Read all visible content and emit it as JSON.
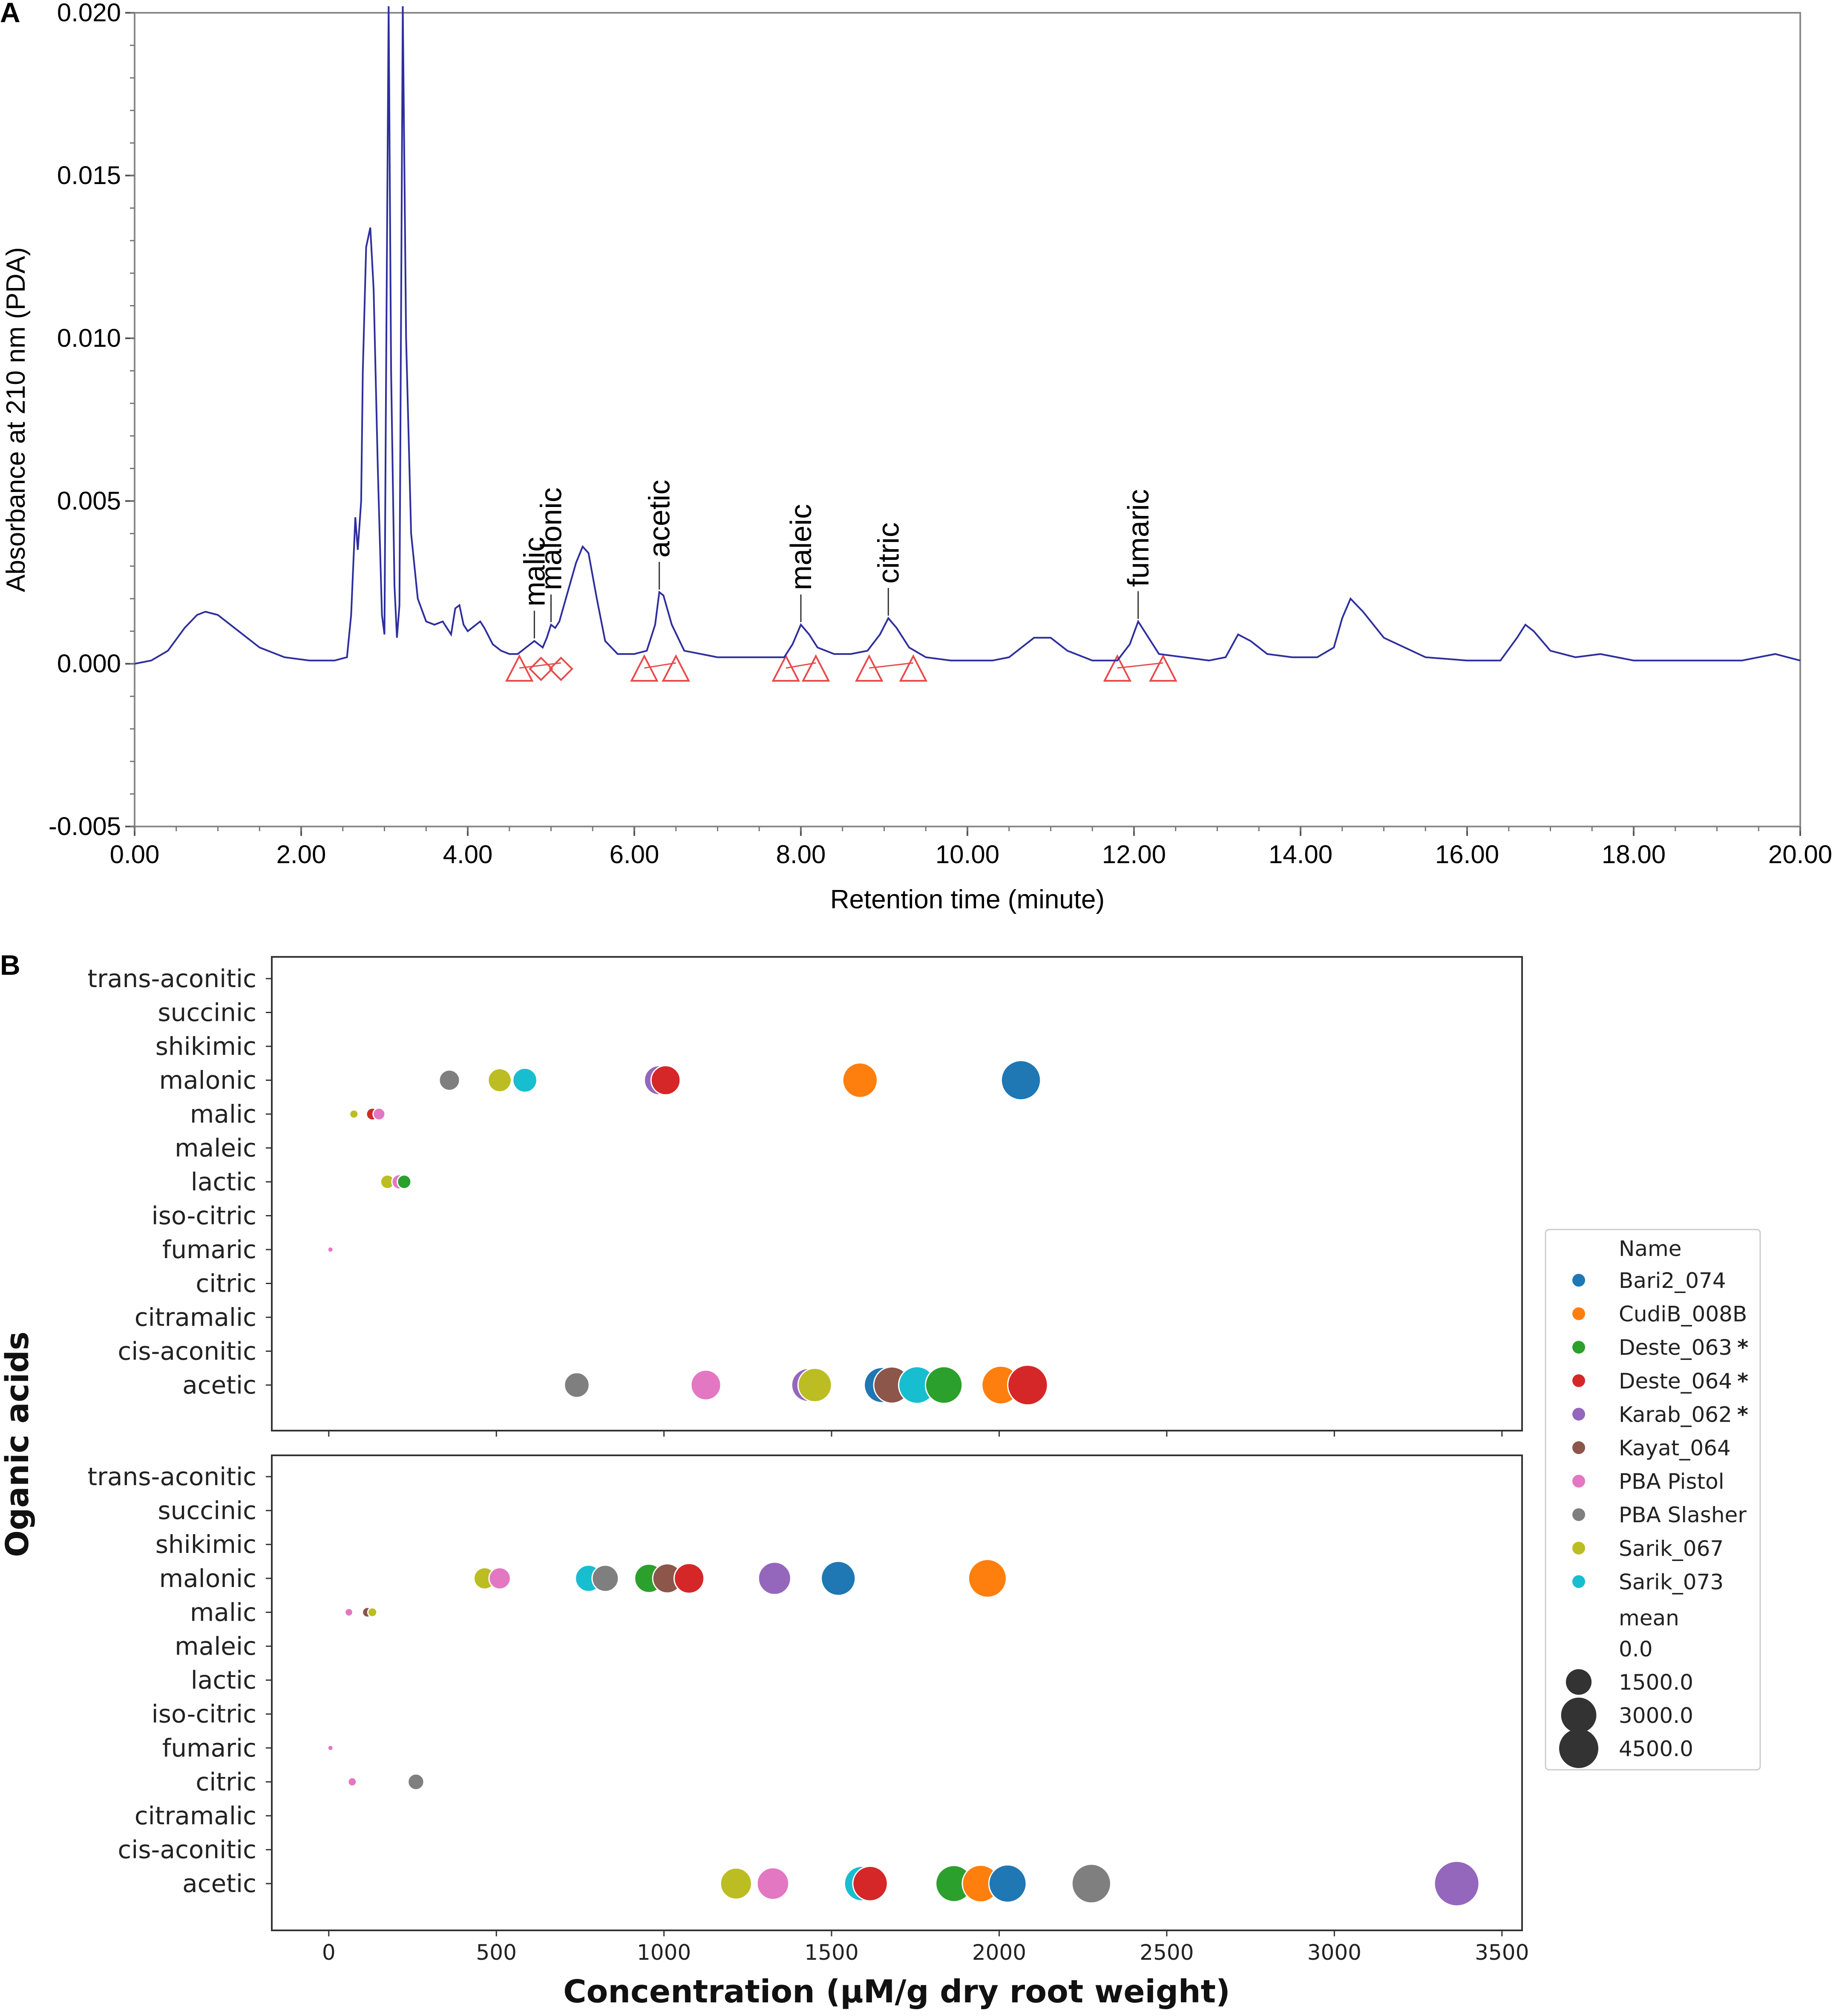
{
  "panel_a_letter": "A",
  "panel_b_letter": "B",
  "chart_data": [
    {
      "type": "line",
      "panel": "A",
      "title": "",
      "xlabel": "Retention time (minute)",
      "ylabel": "Absorbance at 210 nm (PDA)",
      "xlim": [
        0,
        20
      ],
      "ylim": [
        -0.005,
        0.02
      ],
      "x_tick_labels": [
        "0.00",
        "2.00",
        "4.00",
        "6.00",
        "8.00",
        "10.00",
        "12.00",
        "14.00",
        "16.00",
        "18.00",
        "20.00"
      ],
      "y_tick_labels": [
        "-0.005",
        "0.000",
        "0.005",
        "0.010",
        "0.015",
        "0.020"
      ],
      "series": [
        {
          "name": "PDA 210 nm",
          "color": "#2e2e9e",
          "x": [
            0.0,
            0.2,
            0.4,
            0.6,
            0.75,
            0.85,
            1.0,
            1.2,
            1.5,
            1.8,
            2.1,
            2.4,
            2.55,
            2.6,
            2.65,
            2.68,
            2.72,
            2.74,
            2.78,
            2.83,
            2.87,
            2.92,
            2.97,
            3.0,
            3.02,
            3.05,
            3.08,
            3.12,
            3.15,
            3.18,
            3.22,
            3.26,
            3.32,
            3.4,
            3.5,
            3.6,
            3.7,
            3.75,
            3.8,
            3.85,
            3.9,
            3.95,
            4.0,
            4.05,
            4.1,
            4.15,
            4.2,
            4.3,
            4.4,
            4.5,
            4.6,
            4.7,
            4.8,
            4.85,
            4.9,
            4.95,
            5.0,
            5.05,
            5.1,
            5.2,
            5.3,
            5.38,
            5.45,
            5.55,
            5.65,
            5.8,
            6.0,
            6.15,
            6.25,
            6.3,
            6.35,
            6.45,
            6.6,
            6.8,
            7.0,
            7.2,
            7.5,
            7.8,
            7.9,
            8.0,
            8.1,
            8.2,
            8.4,
            8.6,
            8.8,
            8.95,
            9.05,
            9.15,
            9.3,
            9.5,
            9.8,
            10.0,
            10.3,
            10.5,
            10.8,
            11.0,
            11.2,
            11.5,
            11.8,
            11.95,
            12.05,
            12.15,
            12.3,
            12.6,
            12.9,
            13.1,
            13.25,
            13.4,
            13.6,
            13.9,
            14.2,
            14.4,
            14.5,
            14.6,
            14.75,
            15.0,
            15.5,
            16.0,
            16.4,
            16.6,
            16.7,
            16.8,
            17.0,
            17.3,
            17.6,
            18.0,
            18.5,
            19.0,
            19.3,
            19.5,
            19.7,
            20.0
          ],
          "values": [
            0.0,
            0.0001,
            0.0004,
            0.0011,
            0.0015,
            0.0016,
            0.0015,
            0.0011,
            0.0005,
            0.0002,
            0.0001,
            0.0001,
            0.0002,
            0.0015,
            0.0045,
            0.0035,
            0.005,
            0.009,
            0.0128,
            0.0134,
            0.0115,
            0.006,
            0.0015,
            0.0009,
            0.009,
            0.0202,
            0.009,
            0.0024,
            0.0008,
            0.0018,
            0.0202,
            0.01,
            0.004,
            0.002,
            0.0013,
            0.0012,
            0.0013,
            0.0011,
            0.0009,
            0.0017,
            0.0018,
            0.0012,
            0.001,
            0.0011,
            0.0012,
            0.0013,
            0.0011,
            0.0006,
            0.0004,
            0.0003,
            0.0003,
            0.0005,
            0.0007,
            0.0006,
            0.0005,
            0.0008,
            0.0012,
            0.0011,
            0.0013,
            0.0022,
            0.0031,
            0.0036,
            0.0034,
            0.002,
            0.0007,
            0.0003,
            0.0003,
            0.0004,
            0.0012,
            0.0022,
            0.0021,
            0.0012,
            0.0004,
            0.0003,
            0.0002,
            0.0002,
            0.0002,
            0.0002,
            0.0006,
            0.0012,
            0.0009,
            0.0005,
            0.0003,
            0.0003,
            0.0004,
            0.0009,
            0.0014,
            0.0011,
            0.0005,
            0.0002,
            0.0001,
            0.0001,
            0.0001,
            0.0002,
            0.0008,
            0.0008,
            0.0004,
            0.0001,
            0.0001,
            0.0006,
            0.0013,
            0.0009,
            0.0003,
            0.0002,
            0.0001,
            0.0002,
            0.0009,
            0.0007,
            0.0003,
            0.0002,
            0.0002,
            0.0005,
            0.0014,
            0.002,
            0.0016,
            0.0008,
            0.0002,
            0.0001,
            0.0001,
            0.0008,
            0.0012,
            0.001,
            0.0004,
            0.0002,
            0.0003,
            0.0001,
            0.0001,
            0.0001,
            0.0001,
            0.0002,
            0.0003,
            0.0001
          ]
        }
      ],
      "annotations": [
        {
          "label": "malic",
          "x": 4.8
        },
        {
          "label": "malonic",
          "x": 5.0
        },
        {
          "label": "acetic",
          "x": 6.3
        },
        {
          "label": "maleic",
          "x": 8.0
        },
        {
          "label": "citric",
          "x": 9.05
        },
        {
          "label": "fumaric",
          "x": 12.05
        }
      ],
      "integration_markers_x": [
        4.62,
        4.88,
        5.12,
        6.12,
        6.5,
        7.82,
        8.18,
        8.82,
        9.35,
        11.8,
        12.35
      ]
    },
    {
      "type": "scatter",
      "panel": "B",
      "xlabel": "Concentration (µM/g dry root weight)",
      "ylabel": "Oganic acids",
      "xlim": [
        -170,
        3560
      ],
      "x_tick_labels": [
        "0",
        "500",
        "1000",
        "1500",
        "2000",
        "2500",
        "3000",
        "3500"
      ],
      "categories": [
        "trans-aconitic",
        "succinic",
        "shikimic",
        "malonic",
        "malic",
        "maleic",
        "lactic",
        "iso-citric",
        "fumaric",
        "citric",
        "citramalic",
        "cis-aconitic",
        "acetic"
      ],
      "legend_title": "Name",
      "legend": [
        {
          "name": "Bari2_074",
          "color": "#1f77b4",
          "mark": ""
        },
        {
          "name": "CudiB_008B",
          "color": "#ff7f0e",
          "mark": ""
        },
        {
          "name": "Deste_063",
          "color": "#2ca02c",
          "mark": "*"
        },
        {
          "name": "Deste_064",
          "color": "#d62728",
          "mark": "*"
        },
        {
          "name": "Karab_062",
          "color": "#9467bd",
          "mark": "*"
        },
        {
          "name": "Kayat_064",
          "color": "#8c564b",
          "mark": ""
        },
        {
          "name": "PBA Pistol",
          "color": "#e377c2",
          "mark": ""
        },
        {
          "name": "PBA Slasher",
          "color": "#7f7f7f",
          "mark": ""
        },
        {
          "name": "Sarik_067",
          "color": "#bcbd22",
          "mark": ""
        },
        {
          "name": "Sarik_073",
          "color": "#17becf",
          "mark": ""
        }
      ],
      "size_legend_title": "mean",
      "size_legend": [
        {
          "label": "0.0",
          "value": 0
        },
        {
          "label": "1500.0",
          "value": 1500
        },
        {
          "label": "3000.0",
          "value": 3000
        },
        {
          "label": "4500.0",
          "value": 4500
        }
      ],
      "subplots": [
        {
          "points": [
            {
              "name": "PBA Slasher",
              "acid": "malonic",
              "x": 360,
              "mean": 900
            },
            {
              "name": "Sarik_067",
              "acid": "malonic",
              "x": 510,
              "mean": 1200
            },
            {
              "name": "Sarik_073",
              "acid": "malonic",
              "x": 585,
              "mean": 1300
            },
            {
              "name": "Deste_064",
              "acid": "malonic",
              "x": 1005,
              "mean": 2000
            },
            {
              "name": "Karab_062",
              "acid": "malonic",
              "x": 985,
              "mean": 2000
            },
            {
              "name": "CudiB_008B",
              "acid": "malonic",
              "x": 1585,
              "mean": 2900
            },
            {
              "name": "Bari2_074",
              "acid": "malonic",
              "x": 2065,
              "mean": 3800
            },
            {
              "name": "Sarik_067",
              "acid": "malic",
              "x": 75,
              "mean": 100
            },
            {
              "name": "Deste_064",
              "acid": "malic",
              "x": 130,
              "mean": 250
            },
            {
              "name": "PBA Pistol",
              "acid": "malic",
              "x": 150,
              "mean": 250
            },
            {
              "name": "Sarik_067",
              "acid": "lactic",
              "x": 175,
              "mean": 350
            },
            {
              "name": "Deste_063",
              "acid": "lactic",
              "x": 225,
              "mean": 350
            },
            {
              "name": "PBA Pistol",
              "acid": "lactic",
              "x": 210,
              "mean": 400
            },
            {
              "name": "PBA Pistol",
              "acid": "fumaric",
              "x": 5,
              "mean": 10
            },
            {
              "name": "PBA Slasher",
              "acid": "acetic",
              "x": 740,
              "mean": 1400
            },
            {
              "name": "PBA Pistol",
              "acid": "acetic",
              "x": 1125,
              "mean": 2100
            },
            {
              "name": "Karab_062",
              "acid": "acetic",
              "x": 1430,
              "mean": 2600
            },
            {
              "name": "Sarik_067",
              "acid": "acetic",
              "x": 1450,
              "mean": 2700
            },
            {
              "name": "Bari2_074",
              "acid": "acetic",
              "x": 1650,
              "mean": 3000
            },
            {
              "name": "Kayat_064",
              "acid": "acetic",
              "x": 1680,
              "mean": 3200
            },
            {
              "name": "Sarik_073",
              "acid": "acetic",
              "x": 1755,
              "mean": 3300
            },
            {
              "name": "Deste_063",
              "acid": "acetic",
              "x": 1835,
              "mean": 3300
            },
            {
              "name": "CudiB_008B",
              "acid": "acetic",
              "x": 2005,
              "mean": 3500
            },
            {
              "name": "Deste_064",
              "acid": "acetic",
              "x": 2085,
              "mean": 3900
            }
          ]
        },
        {
          "points": [
            {
              "name": "Sarik_067",
              "acid": "malonic",
              "x": 465,
              "mean": 1000
            },
            {
              "name": "PBA Pistol",
              "acid": "malonic",
              "x": 510,
              "mean": 1000
            },
            {
              "name": "Sarik_073",
              "acid": "malonic",
              "x": 775,
              "mean": 1600
            },
            {
              "name": "PBA Slasher",
              "acid": "malonic",
              "x": 825,
              "mean": 1600
            },
            {
              "name": "Deste_063",
              "acid": "malonic",
              "x": 955,
              "mean": 1900
            },
            {
              "name": "Kayat_064",
              "acid": "malonic",
              "x": 1010,
              "mean": 2000
            },
            {
              "name": "Deste_064",
              "acid": "malonic",
              "x": 1075,
              "mean": 2100
            },
            {
              "name": "Karab_062",
              "acid": "malonic",
              "x": 1330,
              "mean": 2500
            },
            {
              "name": "Bari2_074",
              "acid": "malonic",
              "x": 1520,
              "mean": 2800
            },
            {
              "name": "CudiB_008B",
              "acid": "malonic",
              "x": 1965,
              "mean": 3500
            },
            {
              "name": "PBA Pistol",
              "acid": "malic",
              "x": 60,
              "mean": 80
            },
            {
              "name": "Kayat_064",
              "acid": "malic",
              "x": 115,
              "mean": 150
            },
            {
              "name": "Sarik_067",
              "acid": "malic",
              "x": 130,
              "mean": 120
            },
            {
              "name": "PBA Pistol",
              "acid": "fumaric",
              "x": 5,
              "mean": 10
            },
            {
              "name": "PBA Pistol",
              "acid": "citric",
              "x": 70,
              "mean": 100
            },
            {
              "name": "PBA Slasher",
              "acid": "citric",
              "x": 260,
              "mean": 500
            },
            {
              "name": "Sarik_067",
              "acid": "acetic",
              "x": 1215,
              "mean": 2300
            },
            {
              "name": "PBA Pistol",
              "acid": "acetic",
              "x": 1325,
              "mean": 2400
            },
            {
              "name": "Deste_064",
              "acid": "acetic",
              "x": 1615,
              "mean": 2900
            },
            {
              "name": "Sarik_073",
              "acid": "acetic",
              "x": 1590,
              "mean": 2900
            },
            {
              "name": "Deste_063",
              "acid": "acetic",
              "x": 1865,
              "mean": 3200
            },
            {
              "name": "CudiB_008B",
              "acid": "acetic",
              "x": 1945,
              "mean": 3300
            },
            {
              "name": "Bari2_074",
              "acid": "acetic",
              "x": 2025,
              "mean": 3400
            },
            {
              "name": "PBA Slasher",
              "acid": "acetic",
              "x": 2275,
              "mean": 3700
            },
            {
              "name": "Karab_062",
              "acid": "acetic",
              "x": 3365,
              "mean": 5000
            }
          ]
        }
      ]
    }
  ]
}
